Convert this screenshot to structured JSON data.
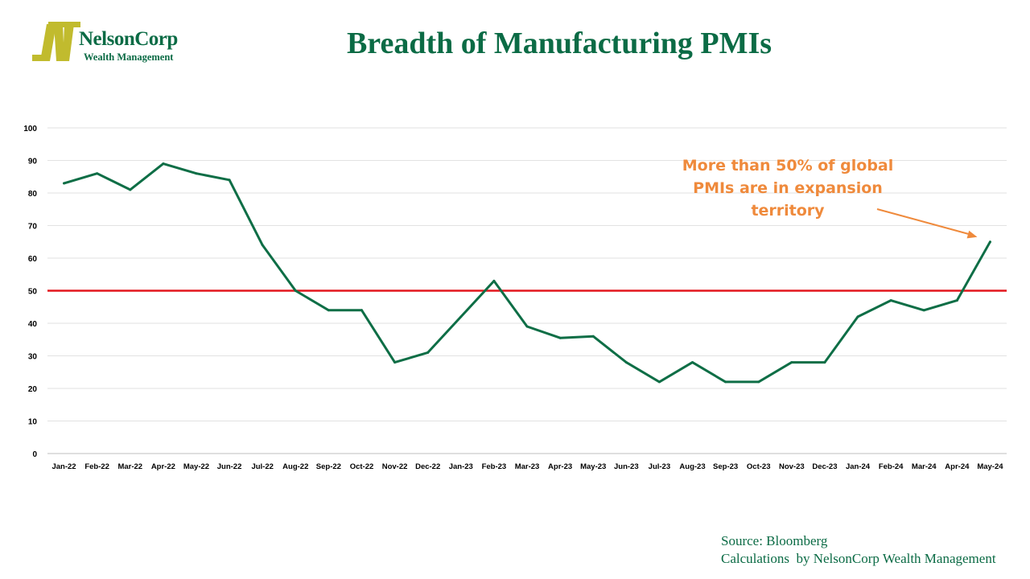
{
  "logo": {
    "name": "NelsonCorp",
    "subtitle": "Wealth Management"
  },
  "title": "Breadth of Manufacturing PMIs",
  "annotation": {
    "lines": [
      "More than 50% of global",
      "PMIs are in expansion",
      "territory"
    ]
  },
  "source": {
    "line1": "Source: Bloomberg",
    "line2": "Calculations  by NelsonCorp Wealth Management"
  },
  "colors": {
    "brand_green": "#0b6b45",
    "logo_olive": "#c1bb2e",
    "series_line": "#0e6e46",
    "threshold_line": "#e3171d",
    "annotation": "#ef8a3c",
    "grid": "#e2e2e2"
  },
  "chart_data": {
    "type": "line",
    "categories": [
      "Jan-22",
      "Feb-22",
      "Mar-22",
      "Apr-22",
      "May-22",
      "Jun-22",
      "Jul-22",
      "Aug-22",
      "Sep-22",
      "Oct-22",
      "Nov-22",
      "Dec-22",
      "Jan-23",
      "Feb-23",
      "Mar-23",
      "Apr-23",
      "May-23",
      "Jun-23",
      "Jul-23",
      "Aug-23",
      "Sep-23",
      "Oct-23",
      "Nov-23",
      "Dec-23",
      "Jan-24",
      "Feb-24",
      "Mar-24",
      "Apr-24",
      "May-24"
    ],
    "series": [
      {
        "values": [
          83,
          86,
          81,
          89,
          86,
          84,
          64,
          50,
          44,
          44,
          28,
          31,
          42,
          53,
          39,
          35.5,
          36,
          28,
          22,
          28,
          22,
          22,
          28,
          28,
          42,
          47,
          44,
          47,
          65
        ]
      }
    ],
    "reference_line": 50,
    "ylim": [
      0,
      100
    ],
    "yticks": [
      0,
      10,
      20,
      30,
      40,
      50,
      60,
      70,
      80,
      90,
      100
    ],
    "grid": true,
    "legend": "none"
  }
}
